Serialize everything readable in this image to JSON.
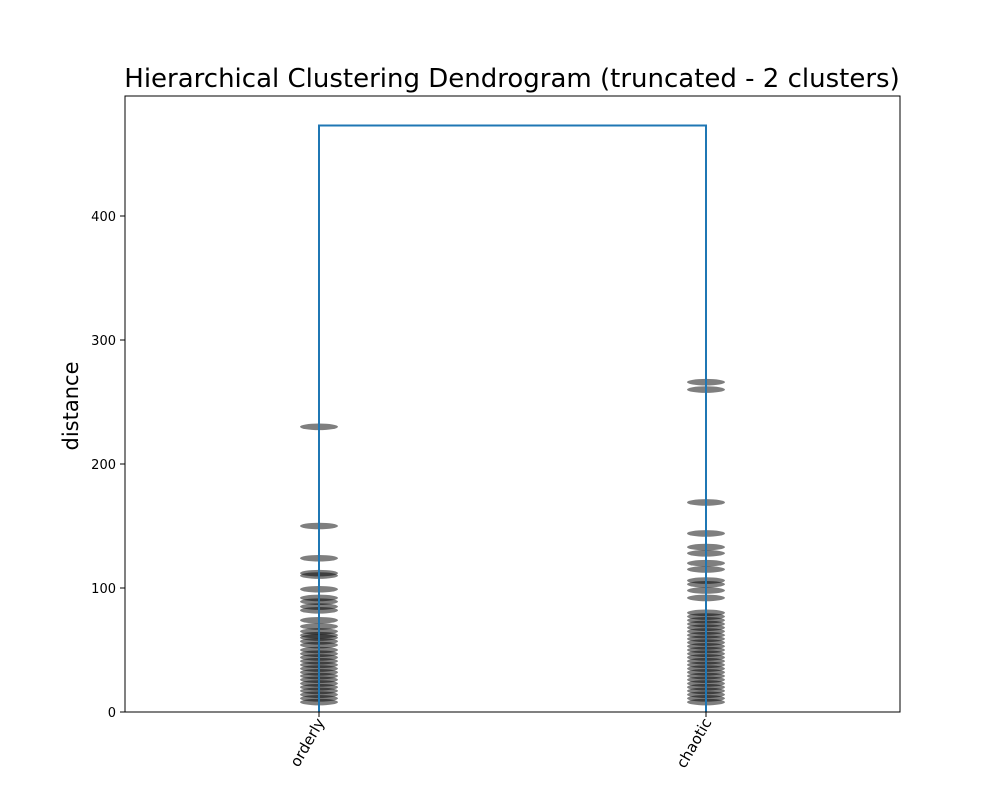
{
  "chart_data": {
    "type": "dendrogram",
    "title": "Hierarchical Clustering Dendrogram (truncated - 2 clusters)",
    "xlabel": "",
    "ylabel": "distance",
    "ylim": [
      0,
      497
    ],
    "yticks": [
      0,
      100,
      200,
      300,
      400
    ],
    "categories": [
      "orderly",
      "chaotic"
    ],
    "link_color": "#1f77b4",
    "merge_height": 473,
    "clusters": [
      {
        "name": "orderly",
        "merge_distances": [
          230,
          150,
          124,
          112,
          110,
          99,
          92,
          89,
          85,
          82,
          74,
          69,
          65,
          62,
          60,
          57,
          54,
          50,
          47,
          44,
          41,
          38,
          35,
          32,
          29,
          26,
          23,
          20,
          17,
          14,
          11,
          8
        ]
      },
      {
        "name": "chaotic",
        "merge_distances": [
          266,
          260,
          169,
          144,
          133,
          128,
          120,
          115,
          106,
          103,
          98,
          92,
          80,
          77,
          74,
          71,
          68,
          65,
          62,
          59,
          56,
          53,
          50,
          47,
          44,
          41,
          38,
          35,
          32,
          29,
          26,
          23,
          20,
          17,
          14,
          11,
          8
        ]
      }
    ]
  }
}
